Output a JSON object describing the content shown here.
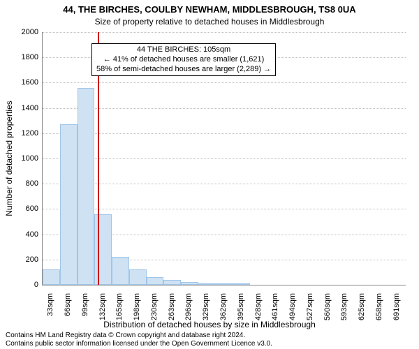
{
  "title": "44, THE BIRCHES, COULBY NEWHAM, MIDDLESBROUGH, TS8 0UA",
  "subtitle": "Size of property relative to detached houses in Middlesbrough",
  "y_axis_label": "Number of detached properties",
  "x_axis_label": "Distribution of detached houses by size in Middlesbrough",
  "title_fontsize": 13,
  "subtitle_fontsize": 12,
  "axis_label_fontsize": 12,
  "tick_fontsize": 11,
  "footer_fontsize": 10,
  "annotation_fontsize": 11,
  "background_color": "#ffffff",
  "grid_color": "#bfbfbf",
  "axis_color": "#888888",
  "bar_fill": "#cfe2f3",
  "bar_border": "#9fc5e8",
  "highlight_color": "#cc0000",
  "text_color": "#000000",
  "chart": {
    "type": "histogram",
    "ymin": 0,
    "ymax": 2000,
    "ytick_step": 200,
    "categories": [
      "33sqm",
      "66sqm",
      "99sqm",
      "132sqm",
      "165sqm",
      "198sqm",
      "230sqm",
      "263sqm",
      "296sqm",
      "329sqm",
      "362sqm",
      "395sqm",
      "428sqm",
      "461sqm",
      "494sqm",
      "527sqm",
      "560sqm",
      "593sqm",
      "625sqm",
      "658sqm",
      "691sqm"
    ],
    "values": [
      120,
      1270,
      1560,
      560,
      220,
      120,
      60,
      40,
      20,
      10,
      10,
      5,
      0,
      0,
      0,
      0,
      0,
      0,
      0,
      0,
      0
    ],
    "highlight_index_after": 2,
    "highlight_value_sqm": 105
  },
  "annotation": {
    "line1": "44 THE BIRCHES: 105sqm",
    "line2": "← 41% of detached houses are smaller (1,621)",
    "line3": "58% of semi-detached houses are larger (2,289) →"
  },
  "footer": {
    "line1": "Contains HM Land Registry data © Crown copyright and database right 2024.",
    "line2": "Contains public sector information licensed under the Open Government Licence v3.0."
  }
}
